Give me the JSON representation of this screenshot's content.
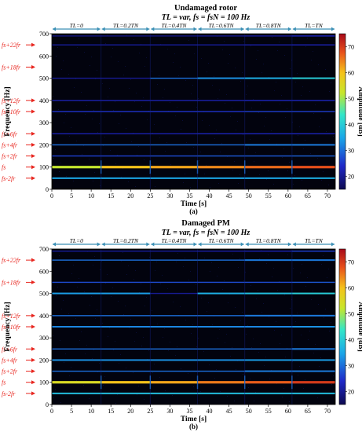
{
  "chart_data": [
    {
      "type": "heatmap",
      "title": "Undamaged rotor",
      "subtitle": "TL = var, fs = fsN = 100 Hz",
      "panel_label": "(a)",
      "xlabel": "Time [s]",
      "ylabel": "Frequency [Hz]",
      "colorbar_label": "Amplitude [dB]",
      "xlim": [
        0,
        72
      ],
      "ylim": [
        0,
        700
      ],
      "xticks": [
        0,
        5,
        10,
        15,
        20,
        25,
        30,
        35,
        40,
        45,
        50,
        55,
        60,
        65,
        70
      ],
      "yticks": [
        0,
        100,
        200,
        300,
        400,
        500,
        600,
        700
      ],
      "cticks": [
        20,
        30,
        40,
        50,
        60,
        70
      ],
      "clim": [
        15,
        75
      ],
      "load_segments": [
        {
          "label": "TL=0",
          "start": 0,
          "end": 12.5
        },
        {
          "label": "TL=0.2TN",
          "start": 12.5,
          "end": 25
        },
        {
          "label": "TL=0.4TN",
          "start": 25,
          "end": 37
        },
        {
          "label": "TL=0.6TN",
          "start": 37,
          "end": 49
        },
        {
          "label": "TL=0.8TN",
          "start": 49,
          "end": 61
        },
        {
          "label": "TL=TN",
          "start": 61,
          "end": 72
        }
      ],
      "harmonic_labels": [
        {
          "label": "fs+22fr",
          "freq": 650
        },
        {
          "label": "fs+18fr",
          "freq": 550
        },
        {
          "label": "fs+12fr",
          "freq": 400
        },
        {
          "label": "fs+10fr",
          "freq": 350
        },
        {
          "label": "fs+6fr",
          "freq": 250
        },
        {
          "label": "fs+4fr",
          "freq": 200
        },
        {
          "label": "fs+2fr",
          "freq": 150
        },
        {
          "label": "fs",
          "freq": 100
        },
        {
          "label": "fs-2fr",
          "freq": 50
        }
      ],
      "lines": [
        {
          "freq": 100,
          "segments_db": [
            52,
            60,
            62,
            64,
            66,
            68
          ]
        },
        {
          "freq": 50,
          "segments_db": [
            35,
            35,
            35,
            35,
            35,
            36
          ]
        },
        {
          "freq": 150,
          "segments_db": [
            26,
            26,
            27,
            28,
            28,
            29
          ]
        },
        {
          "freq": 200,
          "segments_db": [
            30,
            30,
            30,
            30,
            31,
            31
          ]
        },
        {
          "freq": 250,
          "segments_db": [
            22,
            22,
            22,
            23,
            23,
            23
          ]
        },
        {
          "freq": 350,
          "segments_db": [
            25,
            25,
            25,
            25,
            26,
            26
          ]
        },
        {
          "freq": 400,
          "segments_db": [
            22,
            22,
            22,
            22,
            23,
            23
          ]
        },
        {
          "freq": 500,
          "segments_db": [
            20,
            20,
            30,
            33,
            36,
            40
          ]
        },
        {
          "freq": 650,
          "segments_db": [
            20,
            20,
            20,
            20,
            21,
            22
          ]
        },
        {
          "freq": 690,
          "segments_db": [
            19,
            19,
            19,
            20,
            21,
            24
          ]
        }
      ]
    },
    {
      "type": "heatmap",
      "title": "Damaged PM",
      "subtitle": "TL = var, fs = fsN = 100 Hz",
      "panel_label": "(b)",
      "xlabel": "Time [s]",
      "ylabel": "Frequency [Hz]",
      "colorbar_label": "Amplitude [dB]",
      "xlim": [
        0,
        72
      ],
      "ylim": [
        0,
        700
      ],
      "xticks": [
        0,
        5,
        10,
        15,
        20,
        25,
        30,
        35,
        40,
        45,
        50,
        55,
        60,
        65,
        70
      ],
      "yticks": [
        0,
        100,
        200,
        300,
        400,
        500,
        600,
        700
      ],
      "cticks": [
        20,
        30,
        40,
        50,
        60,
        70
      ],
      "clim": [
        15,
        75
      ],
      "load_segments": [
        {
          "label": "TL=0",
          "start": 0,
          "end": 12.5
        },
        {
          "label": "TL=0.2TN",
          "start": 12.5,
          "end": 25
        },
        {
          "label": "TL=0.4TN",
          "start": 25,
          "end": 37
        },
        {
          "label": "TL=0.6TN",
          "start": 37,
          "end": 49
        },
        {
          "label": "TL=0.8TN",
          "start": 49,
          "end": 61
        },
        {
          "label": "TL=TN",
          "start": 61,
          "end": 72
        }
      ],
      "harmonic_labels": [
        {
          "label": "fs+22fr",
          "freq": 650
        },
        {
          "label": "fs+18fr",
          "freq": 550
        },
        {
          "label": "fs+12fr",
          "freq": 400
        },
        {
          "label": "fs+10fr",
          "freq": 350
        },
        {
          "label": "fs+6fr",
          "freq": 250
        },
        {
          "label": "fs+4fr",
          "freq": 200
        },
        {
          "label": "fs+2fr",
          "freq": 150
        },
        {
          "label": "fs",
          "freq": 100
        },
        {
          "label": "fs-2fr",
          "freq": 50
        }
      ],
      "lines": [
        {
          "freq": 100,
          "segments_db": [
            55,
            60,
            62,
            65,
            67,
            70
          ]
        },
        {
          "freq": 50,
          "segments_db": [
            38,
            38,
            38,
            38,
            38,
            38
          ]
        },
        {
          "freq": 150,
          "segments_db": [
            30,
            30,
            30,
            30,
            31,
            31
          ]
        },
        {
          "freq": 200,
          "segments_db": [
            33,
            33,
            33,
            33,
            34,
            34
          ]
        },
        {
          "freq": 250,
          "segments_db": [
            30,
            30,
            30,
            30,
            30,
            31
          ]
        },
        {
          "freq": 350,
          "segments_db": [
            32,
            32,
            32,
            32,
            32,
            33
          ]
        },
        {
          "freq": 400,
          "segments_db": [
            30,
            30,
            30,
            30,
            31,
            31
          ]
        },
        {
          "freq": 500,
          "segments_db": [
            34,
            34,
            20,
            36,
            38,
            40
          ]
        },
        {
          "freq": 550,
          "segments_db": [
            27,
            27,
            27,
            27,
            27,
            28
          ]
        },
        {
          "freq": 650,
          "segments_db": [
            30,
            30,
            30,
            30,
            31,
            31
          ]
        },
        {
          "freq": 690,
          "segments_db": [
            20,
            20,
            20,
            21,
            22,
            26
          ]
        }
      ]
    }
  ]
}
